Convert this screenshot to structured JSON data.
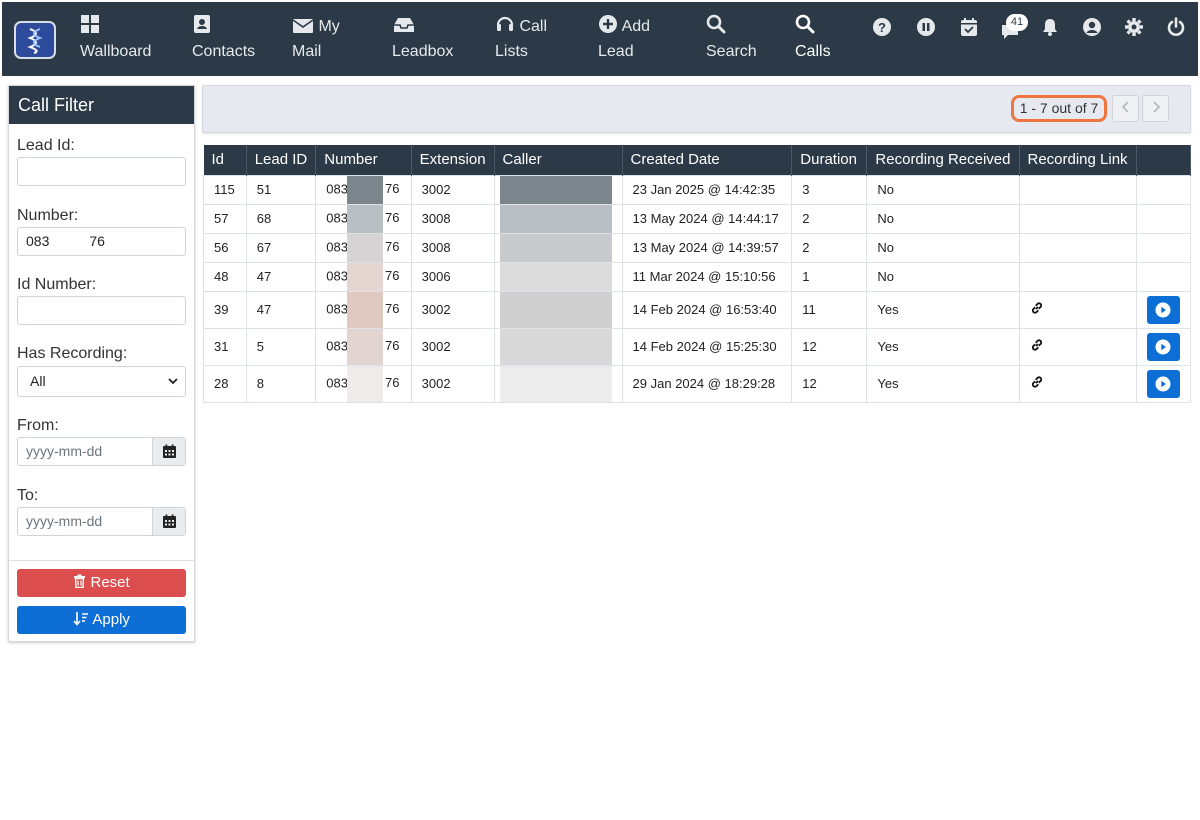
{
  "nav": {
    "items": [
      {
        "label1": "",
        "label2": "Wallboard",
        "icon": "grid-icon"
      },
      {
        "label1": "",
        "label2": "Contacts",
        "icon": "contacts-icon"
      },
      {
        "label1": "My",
        "label2": "Mail",
        "icon": "mail-icon"
      },
      {
        "label1": "",
        "label2": "Leadbox",
        "icon": "inbox-icon"
      },
      {
        "label1": "Call",
        "label2": "Lists",
        "icon": "headset-icon"
      },
      {
        "label1": "Add",
        "label2": "Lead",
        "icon": "plus-circle-icon"
      },
      {
        "label1": "",
        "label2": "Search",
        "icon": "search-icon"
      },
      {
        "label1": "",
        "label2": "Calls",
        "icon": "search-icon"
      }
    ],
    "active": "Calls",
    "messages_badge": "41",
    "right_icons": [
      "help-icon",
      "pause-icon",
      "calendar-check-icon",
      "chat-icon",
      "bell-icon",
      "user-icon",
      "gear-icon",
      "power-icon"
    ]
  },
  "filter": {
    "title": "Call Filter",
    "lead_id_label": "Lead Id:",
    "lead_id_value": "",
    "number_label": "Number:",
    "number_value_start": "083",
    "number_value_end": "76",
    "id_number_label": "Id Number:",
    "id_number_value": "",
    "has_recording_label": "Has Recording:",
    "has_recording_value": "All",
    "from_label": "From:",
    "from_placeholder": "yyyy-mm-dd",
    "to_label": "To:",
    "to_placeholder": "yyyy-mm-dd",
    "reset_label": "Reset",
    "apply_label": "Apply"
  },
  "pager": {
    "text": "1 - 7 out of 7"
  },
  "table": {
    "headers": [
      "Id",
      "Lead ID",
      "Number",
      "Extension",
      "Caller",
      "Created Date",
      "Duration",
      "Recording Received",
      "Recording Link",
      ""
    ],
    "rows": [
      {
        "id": "115",
        "lead_id": "51",
        "num_start": "083",
        "num_end": "76",
        "extension": "3002",
        "created": "23 Jan 2025 @ 14:42:35",
        "duration": "3",
        "received": "No",
        "has_link": false,
        "blur_num": "#7b858c",
        "blur_caller": "#7b858c"
      },
      {
        "id": "57",
        "lead_id": "68",
        "num_start": "083",
        "num_end": "76",
        "extension": "3008",
        "created": "13 May 2024 @ 14:44:17",
        "duration": "2",
        "received": "No",
        "has_link": false,
        "blur_num": "#b9c0c4",
        "blur_caller": "#b9bfc2"
      },
      {
        "id": "56",
        "lead_id": "67",
        "num_start": "083",
        "num_end": "76",
        "extension": "3008",
        "created": "13 May 2024 @ 14:39:57",
        "duration": "2",
        "received": "No",
        "has_link": false,
        "blur_num": "#d5d3d3",
        "blur_caller": "#c7cbce"
      },
      {
        "id": "48",
        "lead_id": "47",
        "num_start": "083",
        "num_end": "76",
        "extension": "3006",
        "created": "11 Mar 2024 @ 15:10:56",
        "duration": "1",
        "received": "No",
        "has_link": false,
        "blur_num": "#e5d6d2",
        "blur_caller": "#dcdcdc"
      },
      {
        "id": "39",
        "lead_id": "47",
        "num_start": "083",
        "num_end": "76",
        "extension": "3002",
        "created": "14 Feb 2024 @ 16:53:40",
        "duration": "11",
        "received": "Yes",
        "has_link": true,
        "blur_num": "#dfc8c0",
        "blur_caller": "#cfcfcf"
      },
      {
        "id": "31",
        "lead_id": "5",
        "num_start": "083",
        "num_end": "76",
        "extension": "3002",
        "created": "14 Feb 2024 @ 15:25:30",
        "duration": "12",
        "received": "Yes",
        "has_link": true,
        "blur_num": "#e2d4d0",
        "blur_caller": "#d8d8d8"
      },
      {
        "id": "28",
        "lead_id": "8",
        "num_start": "083",
        "num_end": "76",
        "extension": "3002",
        "created": "29 Jan 2024 @ 18:29:28",
        "duration": "12",
        "received": "Yes",
        "has_link": true,
        "blur_num": "#efebea",
        "blur_caller": "#ececec"
      }
    ]
  },
  "colors": {
    "nav_bg": "#2b3a46",
    "reset": "#dc4d4d",
    "apply": "#0d6fd6",
    "highlight": "#f0743f"
  }
}
